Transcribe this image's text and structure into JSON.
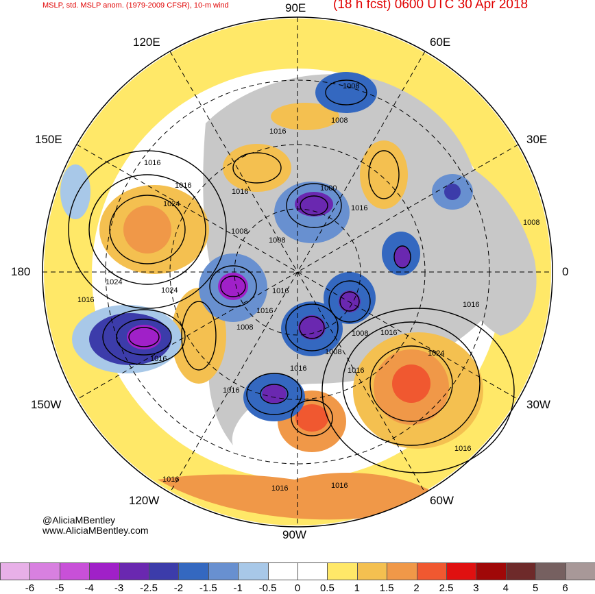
{
  "header": {
    "left_title": "MSLP, std. MSLP anom. (1979-2009 CFSR), 10-m wind",
    "right_title": "(18 h fcst) 0600 UTC 30 Apr 2018"
  },
  "longitude_labels": {
    "e90": "90E",
    "e120": "120E",
    "e60": "60E",
    "e150": "150E",
    "e30": "30E",
    "l180": "180",
    "l0": "0",
    "w150": "150W",
    "w30": "30W",
    "w120": "120W",
    "w60": "60W",
    "w90": "90W"
  },
  "isobar_labels": [
    "1008",
    "1008",
    "1016",
    "1016",
    "1016",
    "1024",
    "1016",
    "1008",
    "1008",
    "1000",
    "1016",
    "1008",
    "1024",
    "1016",
    "1016",
    "1024",
    "1016",
    "1016",
    "1008",
    "1016",
    "1008",
    "1016",
    "1008",
    "1016",
    "1016",
    "1016",
    "1024",
    "1016",
    "1016",
    "1016",
    "1016"
  ],
  "credit": {
    "handle": "@AliciaMBentley",
    "url": "www.AliciaMBentley.com"
  },
  "colorbar": {
    "labels": [
      "-6",
      "-5",
      "-4",
      "-3",
      "-2.5",
      "-2",
      "-1.5",
      "-1",
      "-0.5",
      "0",
      "0.5",
      "1",
      "1.5",
      "2",
      "2.5",
      "3",
      "4",
      "5",
      "6"
    ],
    "colors": [
      "#e8b0e8",
      "#d880e0",
      "#c850d8",
      "#a020c8",
      "#6a28b0",
      "#3c3caa",
      "#3468c0",
      "#6890d0",
      "#a8c8e8",
      "#ffffff",
      "#ffffff",
      "#ffe868",
      "#f4c050",
      "#f09848",
      "#f05830",
      "#e01010",
      "#a00808",
      "#6e2a2a",
      "#766060",
      "#a89898"
    ]
  },
  "colors": {
    "land_gray": "#c8c8c8",
    "title_red": "#e00000"
  }
}
